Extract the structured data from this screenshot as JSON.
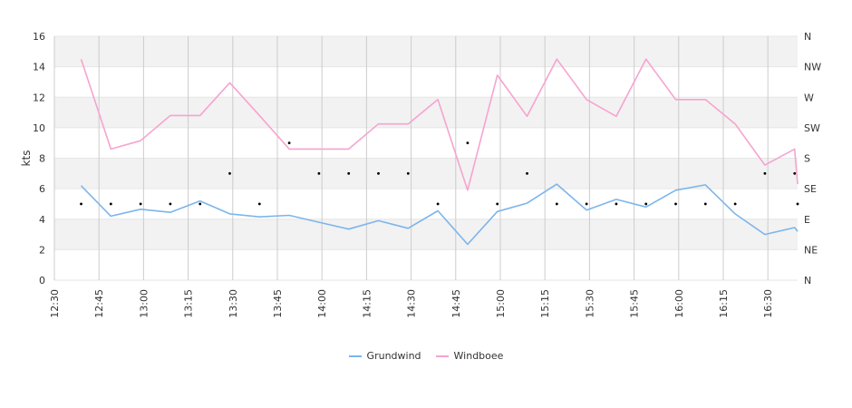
{
  "chart_data": {
    "type": "line",
    "ylabel": "kts",
    "ylim": [
      0,
      16
    ],
    "yticks": [
      "0",
      "2",
      "4",
      "6",
      "8",
      "10",
      "12",
      "14",
      "16"
    ],
    "y2ticks": [
      "N",
      "NE",
      "E",
      "SE",
      "S",
      "SW",
      "W",
      "NW",
      "N"
    ],
    "xlim": [
      "12:30",
      "16:40"
    ],
    "xticks": [
      "12:30",
      "12:45",
      "13:00",
      "13:15",
      "13:30",
      "13:45",
      "14:00",
      "14:15",
      "14:30",
      "14:45",
      "15:00",
      "15:15",
      "15:30",
      "15:45",
      "16:00",
      "16:15",
      "16:30"
    ],
    "x": [
      "12:39",
      "12:49",
      "12:59",
      "13:09",
      "13:19",
      "13:29",
      "13:39",
      "13:49",
      "13:59",
      "14:09",
      "14:19",
      "14:29",
      "14:39",
      "14:49",
      "14:59",
      "15:09",
      "15:19",
      "15:29",
      "15:39",
      "15:49",
      "15:59",
      "16:09",
      "16:19",
      "16:29",
      "16:39",
      "16:40"
    ],
    "series": [
      {
        "name": "Grundwind",
        "color": "#7cb5ec",
        "values": [
          6.2,
          4.2,
          4.65,
          4.45,
          5.2,
          4.35,
          4.15,
          4.25,
          3.8,
          3.35,
          3.9,
          3.4,
          4.55,
          2.35,
          4.5,
          5.05,
          6.3,
          4.6,
          5.3,
          4.8,
          5.9,
          6.25,
          4.35,
          3.0,
          3.45,
          3.2
        ]
      },
      {
        "name": "Windboee",
        "color": "#f7a3cf",
        "values": [
          14.5,
          8.6,
          9.15,
          10.8,
          10.8,
          12.95,
          10.8,
          8.6,
          8.6,
          8.6,
          10.25,
          10.25,
          11.85,
          5.9,
          13.45,
          10.75,
          14.5,
          11.85,
          10.75,
          14.5,
          11.85,
          11.85,
          10.25,
          7.55,
          8.6,
          6.3
        ]
      }
    ],
    "direction": {
      "x": [
        "12:39",
        "12:49",
        "12:59",
        "13:09",
        "13:19",
        "13:29",
        "13:39",
        "13:49",
        "13:59",
        "14:09",
        "14:19",
        "14:29",
        "14:39",
        "14:49",
        "14:59",
        "15:09",
        "15:19",
        "15:29",
        "15:39",
        "15:49",
        "15:59",
        "16:09",
        "16:19",
        "16:29",
        "16:39",
        "16:40"
      ],
      "values": [
        "E",
        "E",
        "E",
        "E",
        "E",
        "SE",
        "E",
        "S",
        "SE",
        "SE",
        "SE",
        "SE",
        "E",
        "S",
        "E",
        "SE",
        "E",
        "E",
        "E",
        "E",
        "E",
        "E",
        "E",
        "SE",
        "SE",
        "E"
      ]
    },
    "grid": true,
    "legend": "bottom-center"
  }
}
